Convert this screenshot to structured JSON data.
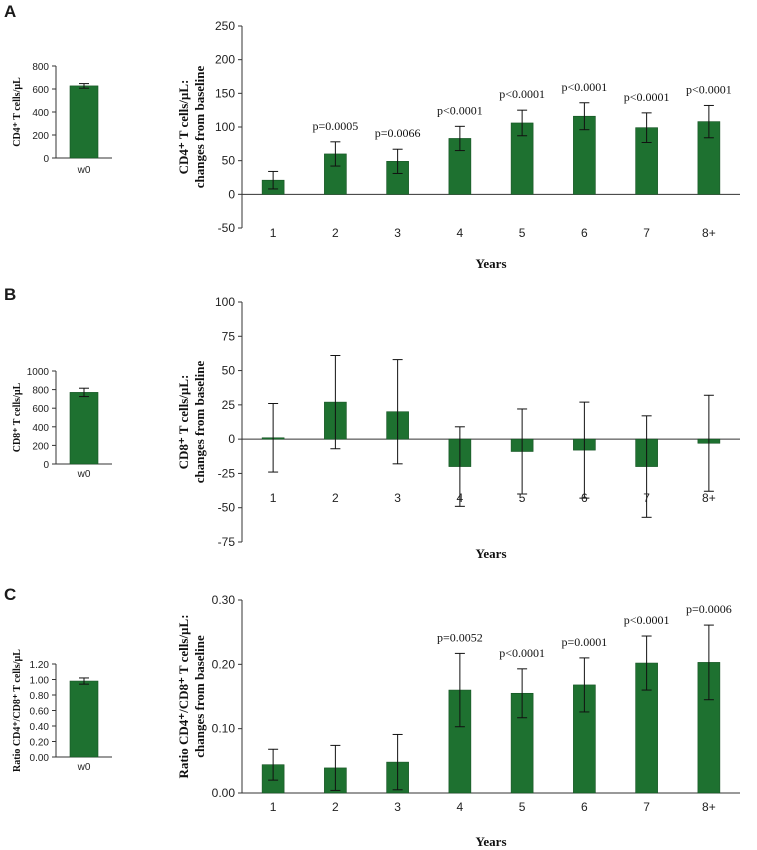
{
  "colors": {
    "bar": "#1e7130",
    "bar_edge": "#145222",
    "axis": "#333333",
    "err": "#111111"
  },
  "panels": [
    {
      "letter": "A"
    },
    {
      "letter": "B"
    },
    {
      "letter": "C"
    }
  ],
  "chart_data": [
    {
      "id": "A-baseline",
      "type": "bar",
      "title": "",
      "ylabel": "CD4⁺ T cells/µL",
      "categories": [
        "w0"
      ],
      "values": [
        627
      ],
      "errors": [
        20
      ],
      "ylim": [
        0,
        800
      ],
      "yticks": [
        0,
        200,
        400,
        600,
        800
      ],
      "tick_format": "int"
    },
    {
      "id": "A-change",
      "type": "bar",
      "ylabel_line1": "CD4⁺ T cells/µL:",
      "ylabel_line2": "changes from baseline",
      "xlabel": "Years",
      "categories": [
        "1",
        "2",
        "3",
        "4",
        "5",
        "6",
        "7",
        "8+"
      ],
      "values": [
        21,
        60,
        49,
        83,
        106,
        116,
        99,
        108
      ],
      "errors": [
        13,
        18,
        18,
        18,
        19,
        20,
        22,
        24
      ],
      "pvalues": [
        "",
        "p=0.0005",
        "p=0.0066",
        "p<0.0001",
        "p<0.0001",
        "p<0.0001",
        "p<0.0001",
        "p<0.0001"
      ],
      "ylim": [
        -50,
        250
      ],
      "yticks": [
        -50,
        0,
        50,
        100,
        150,
        200,
        250
      ],
      "tick_format": "int"
    },
    {
      "id": "B-baseline",
      "type": "bar",
      "ylabel": "CD8⁺ T cells/µL",
      "categories": [
        "w0"
      ],
      "values": [
        770
      ],
      "errors": [
        45
      ],
      "ylim": [
        0,
        1000
      ],
      "yticks": [
        0,
        200,
        400,
        600,
        800,
        1000
      ],
      "tick_format": "int"
    },
    {
      "id": "B-change",
      "type": "bar",
      "ylabel_line1": "CD8⁺ T cells/µL:",
      "ylabel_line2": "changes from baseline",
      "xlabel": "Years",
      "categories": [
        "1",
        "2",
        "3",
        "4",
        "5",
        "6",
        "7",
        "8+"
      ],
      "values": [
        1,
        27,
        20,
        -20,
        -9,
        -8,
        -20,
        -3
      ],
      "errors": [
        25,
        34,
        38,
        29,
        31,
        35,
        37,
        35
      ],
      "pvalues": [
        "",
        "",
        "",
        "",
        "",
        "",
        "",
        ""
      ],
      "ylim": [
        -75,
        100
      ],
      "yticks": [
        -75,
        -50,
        -25,
        0,
        25,
        50,
        75,
        100
      ],
      "tick_format": "int"
    },
    {
      "id": "C-baseline",
      "type": "bar",
      "ylabel": "Ratio CD4⁺/CD8⁺ T cells/µL",
      "categories": [
        "w0"
      ],
      "values": [
        0.98
      ],
      "errors": [
        0.04
      ],
      "ylim": [
        0,
        1.2
      ],
      "yticks": [
        0,
        0.2,
        0.4,
        0.6,
        0.8,
        1.0,
        1.2
      ],
      "tick_format": "fixed2"
    },
    {
      "id": "C-change",
      "type": "bar",
      "ylabel_line1": "Ratio CD4⁺/CD8⁺ T cells/µL:",
      "ylabel_line2": "changes from baseline",
      "xlabel": "Years",
      "categories": [
        "1",
        "2",
        "3",
        "4",
        "5",
        "6",
        "7",
        "8+"
      ],
      "values": [
        0.044,
        0.039,
        0.048,
        0.16,
        0.155,
        0.168,
        0.202,
        0.203
      ],
      "errors": [
        0.024,
        0.035,
        0.043,
        0.057,
        0.038,
        0.042,
        0.042,
        0.058
      ],
      "pvalues": [
        "",
        "",
        "",
        "p=0.0052",
        "p<0.0001",
        "p=0.0001",
        "p<0.0001",
        "p=0.0006"
      ],
      "ylim": [
        0,
        0.3
      ],
      "yticks": [
        0,
        0.1,
        0.2,
        0.3
      ],
      "tick_format": "fixed2"
    }
  ]
}
